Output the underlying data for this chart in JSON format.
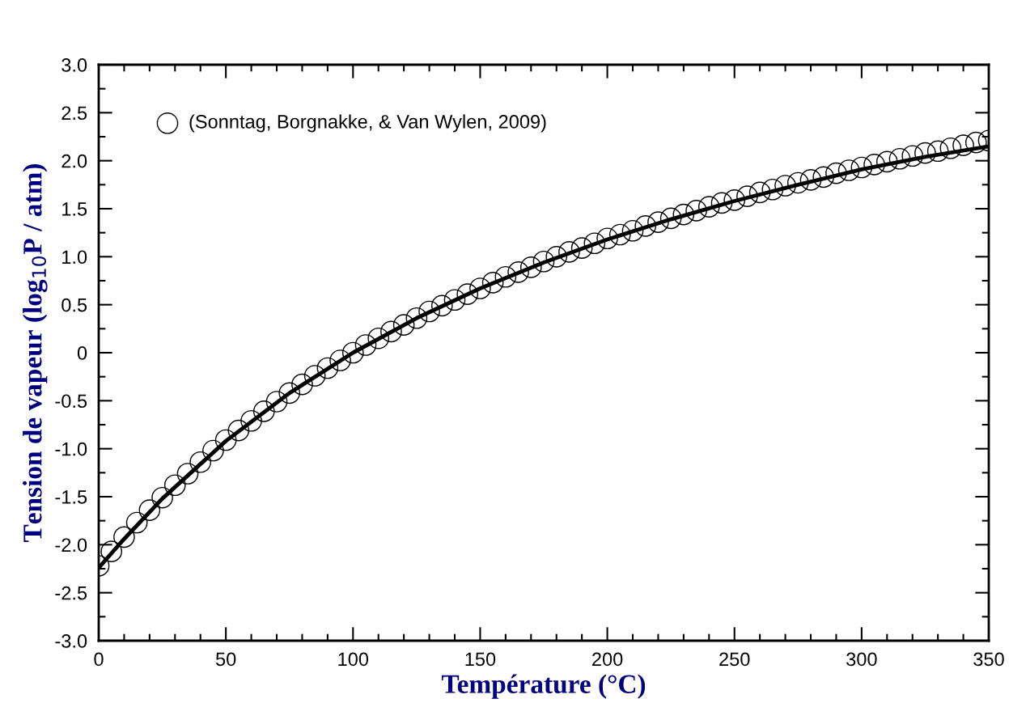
{
  "chart_data": {
    "type": "scatter",
    "xlabel": "Température (°C)",
    "ylabel": "Tension de vapeur (log$_{10}$P / atm)",
    "xlim": [
      0,
      350
    ],
    "ylim": [
      -3,
      3
    ],
    "xticks": [
      0,
      {
        "value": 10,
        "label": null
      },
      {
        "value": 20,
        "label": null
      },
      {
        "value": 30,
        "label": null
      },
      {
        "value": 40,
        "label": null
      },
      50,
      {
        "value": 60,
        "label": null
      },
      {
        "value": 70,
        "label": null
      },
      {
        "value": 80,
        "label": null
      },
      {
        "value": 90,
        "label": null
      },
      100,
      {
        "value": 110,
        "label": null
      },
      {
        "value": 120,
        "label": null
      },
      {
        "value": 130,
        "label": null
      },
      {
        "value": 140,
        "label": null
      },
      150,
      {
        "value": 160,
        "label": null
      },
      {
        "value": 170,
        "label": null
      },
      {
        "value": 180,
        "label": null
      },
      {
        "value": 190,
        "label": null
      },
      200,
      {
        "value": 210,
        "label": null
      },
      {
        "value": 220,
        "label": null
      },
      {
        "value": 230,
        "label": null
      },
      {
        "value": 240,
        "label": null
      },
      250,
      {
        "value": 260,
        "label": null
      },
      {
        "value": 270,
        "label": null
      },
      {
        "value": 280,
        "label": null
      },
      {
        "value": 290,
        "label": null
      },
      300,
      {
        "value": 310,
        "label": null
      },
      {
        "value": 320,
        "label": null
      },
      {
        "value": 330,
        "label": null
      },
      {
        "value": 340,
        "label": null
      },
      350
    ],
    "yticks": [
      {
        "value": -3,
        "label": "-3.0"
      },
      {
        "value": -2.75,
        "label": null
      },
      {
        "value": -2.5,
        "label": "-2.5"
      },
      {
        "value": -2.25,
        "label": null
      },
      {
        "value": -2,
        "label": "-2.0"
      },
      {
        "value": -1.75,
        "label": null
      },
      {
        "value": -1.5,
        "label": "-1.5"
      },
      {
        "value": -1.25,
        "label": null
      },
      {
        "value": -1,
        "label": "-1.0"
      },
      {
        "value": -0.75,
        "label": null
      },
      {
        "value": -0.5,
        "label": "-0.5"
      },
      {
        "value": -0.25,
        "label": null
      },
      0,
      {
        "value": 0.25,
        "label": null
      },
      {
        "value": 0.5,
        "label": "0.5"
      },
      {
        "value": 0.75,
        "label": null
      },
      {
        "value": 1,
        "label": "1.0"
      },
      {
        "value": 1.25,
        "label": null
      },
      {
        "value": 1.5,
        "label": "1.5"
      },
      {
        "value": 1.75,
        "label": null
      },
      {
        "value": 2,
        "label": "2.0"
      },
      {
        "value": 2.25,
        "label": null
      },
      {
        "value": 2.5,
        "label": "2.5"
      },
      {
        "value": 2.75,
        "label": null
      },
      {
        "value": 3,
        "label": "3.0"
      }
    ],
    "legend": "top left",
    "grid": false,
    "series": [
      {
        "name": "(Sonntag, Borgnakke, & Van Wylen, 2009)",
        "marker": "circle",
        "color": "#000000",
        "x": [
          0,
          5,
          10,
          15,
          20,
          25,
          30,
          35,
          40,
          45,
          50,
          55,
          60,
          65,
          70,
          75,
          80,
          85,
          90,
          95,
          100,
          105,
          110,
          115,
          120,
          125,
          130,
          135,
          140,
          145,
          150,
          155,
          160,
          165,
          170,
          175,
          180,
          185,
          190,
          195,
          200,
          205,
          210,
          215,
          220,
          225,
          230,
          235,
          240,
          245,
          250,
          255,
          260,
          265,
          270,
          275,
          280,
          285,
          290,
          295,
          300,
          305,
          310,
          315,
          320,
          325,
          330,
          335,
          340,
          345,
          350
        ],
        "values": [
          -2.22,
          -2.07,
          -1.92,
          -1.77,
          -1.64,
          -1.51,
          -1.38,
          -1.26,
          -1.14,
          -1.02,
          -0.91,
          -0.81,
          -0.71,
          -0.61,
          -0.51,
          -0.42,
          -0.33,
          -0.24,
          -0.16,
          -0.08,
          0.0,
          0.08,
          0.15,
          0.22,
          0.29,
          0.36,
          0.43,
          0.49,
          0.55,
          0.61,
          0.67,
          0.73,
          0.79,
          0.84,
          0.89,
          0.95,
          1.0,
          1.05,
          1.09,
          1.14,
          1.19,
          1.23,
          1.27,
          1.32,
          1.36,
          1.4,
          1.44,
          1.48,
          1.52,
          1.56,
          1.59,
          1.63,
          1.67,
          1.7,
          1.74,
          1.77,
          1.8,
          1.83,
          1.87,
          1.9,
          1.93,
          1.96,
          1.99,
          2.02,
          2.05,
          2.08,
          2.1,
          2.13,
          2.16,
          2.19,
          2.21
        ]
      },
      {
        "type": "line",
        "color": "#000000",
        "line_style": "solid",
        "marker": "none",
        "x": [
          0,
          10,
          25,
          50,
          75,
          100,
          125,
          150,
          175,
          200,
          225,
          250,
          275,
          300,
          325,
          350
        ],
        "values": [
          -2.24,
          -1.94,
          -1.52,
          -0.92,
          -0.42,
          0.0,
          0.36,
          0.67,
          0.94,
          1.18,
          1.39,
          1.58,
          1.75,
          1.91,
          2.04,
          2.15
        ]
      }
    ]
  }
}
